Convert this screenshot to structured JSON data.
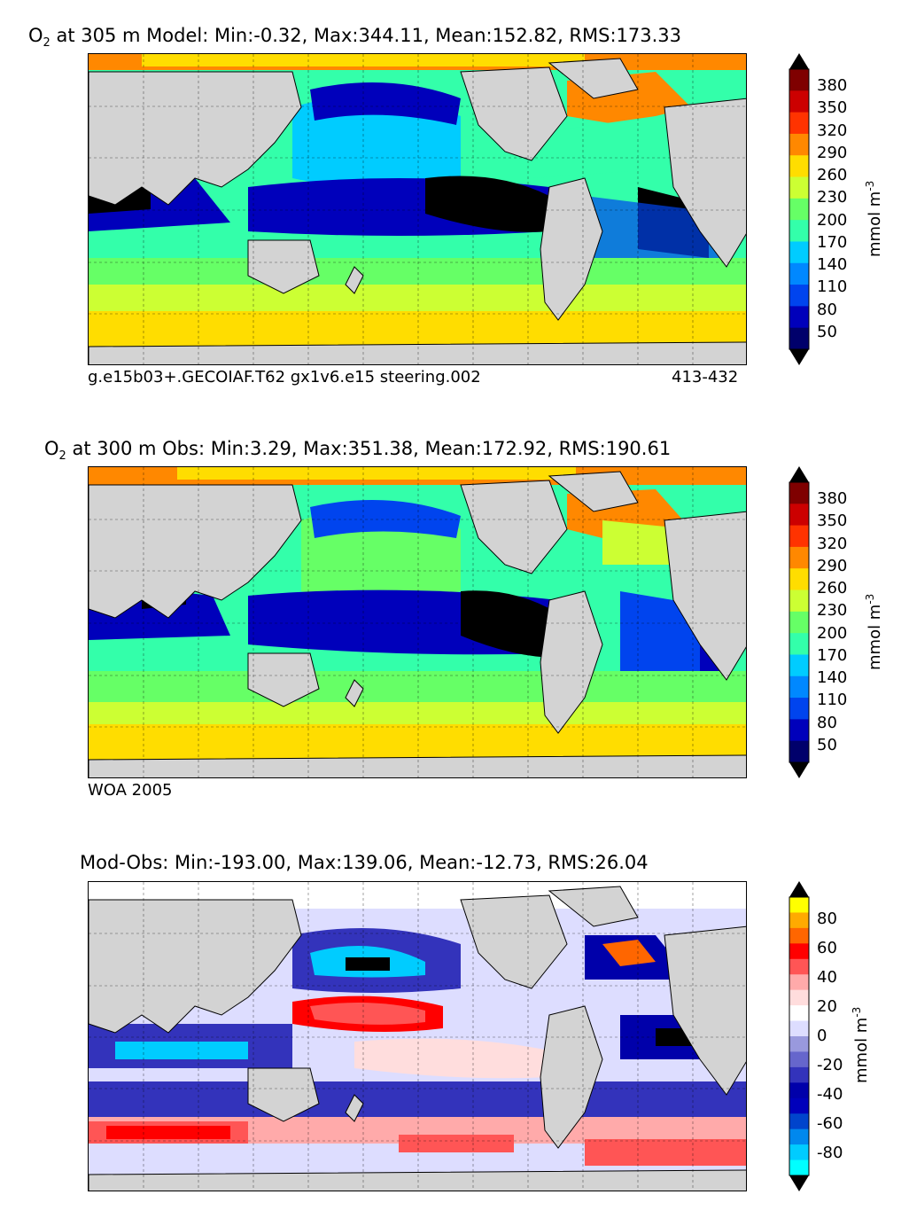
{
  "panels": [
    {
      "title_prefix": "O",
      "title_sub": "2",
      "title_rest": " at 305 m Model: Min:-0.32, Max:344.11, Mean:152.82, RMS:173.33",
      "footer_left": "g.e15b03+.GECOIAF.T62 gx1v6.e15 steering.002",
      "footer_right": "413-432",
      "colorbar": {
        "ticks": [
          "380",
          "350",
          "320",
          "290",
          "260",
          "230",
          "200",
          "170",
          "140",
          "110",
          "80",
          "50"
        ],
        "unit": "mmol m",
        "unit_sup": "-3",
        "colors": [
          "#7f0000",
          "#cc0000",
          "#ff3300",
          "#ff8800",
          "#ffdd00",
          "#ccff33",
          "#66ff66",
          "#33ffaa",
          "#00ccff",
          "#0088ff",
          "#0044ee",
          "#0000bb",
          "#00006b"
        ]
      }
    },
    {
      "title_prefix": "O",
      "title_sub": "2",
      "title_rest": " at 300 m Obs: Min:3.29, Max:351.38, Mean:172.92, RMS:190.61",
      "footer_left": "WOA 2005",
      "footer_right": "",
      "colorbar": {
        "ticks": [
          "380",
          "350",
          "320",
          "290",
          "260",
          "230",
          "200",
          "170",
          "140",
          "110",
          "80",
          "50"
        ],
        "unit": "mmol m",
        "unit_sup": "-3",
        "colors": [
          "#7f0000",
          "#cc0000",
          "#ff3300",
          "#ff8800",
          "#ffdd00",
          "#ccff33",
          "#66ff66",
          "#33ffaa",
          "#00ccff",
          "#0088ff",
          "#0044ee",
          "#0000bb",
          "#00006b"
        ]
      }
    },
    {
      "title_prefix": "",
      "title_sub": "",
      "title_rest": "Mod-Obs: Min:-193.00, Max:139.06, Mean:-12.73, RMS:26.04",
      "footer_left": "",
      "footer_right": "",
      "colorbar": {
        "ticks": [
          "80",
          "60",
          "40",
          "20",
          "0",
          "-20",
          "-40",
          "-60",
          "-80"
        ],
        "unit": "mmol m",
        "unit_sup": "-3",
        "colors": [
          "#ffff00",
          "#ffaa00",
          "#ff6600",
          "#ff0000",
          "#ff5555",
          "#ffaaaa",
          "#ffdddd",
          "#ffffff",
          "#ddddff",
          "#9999dd",
          "#6666cc",
          "#3333bb",
          "#0000aa",
          "#0000bb",
          "#0044cc",
          "#0088ee",
          "#00ccff",
          "#00ffff"
        ]
      }
    }
  ]
}
